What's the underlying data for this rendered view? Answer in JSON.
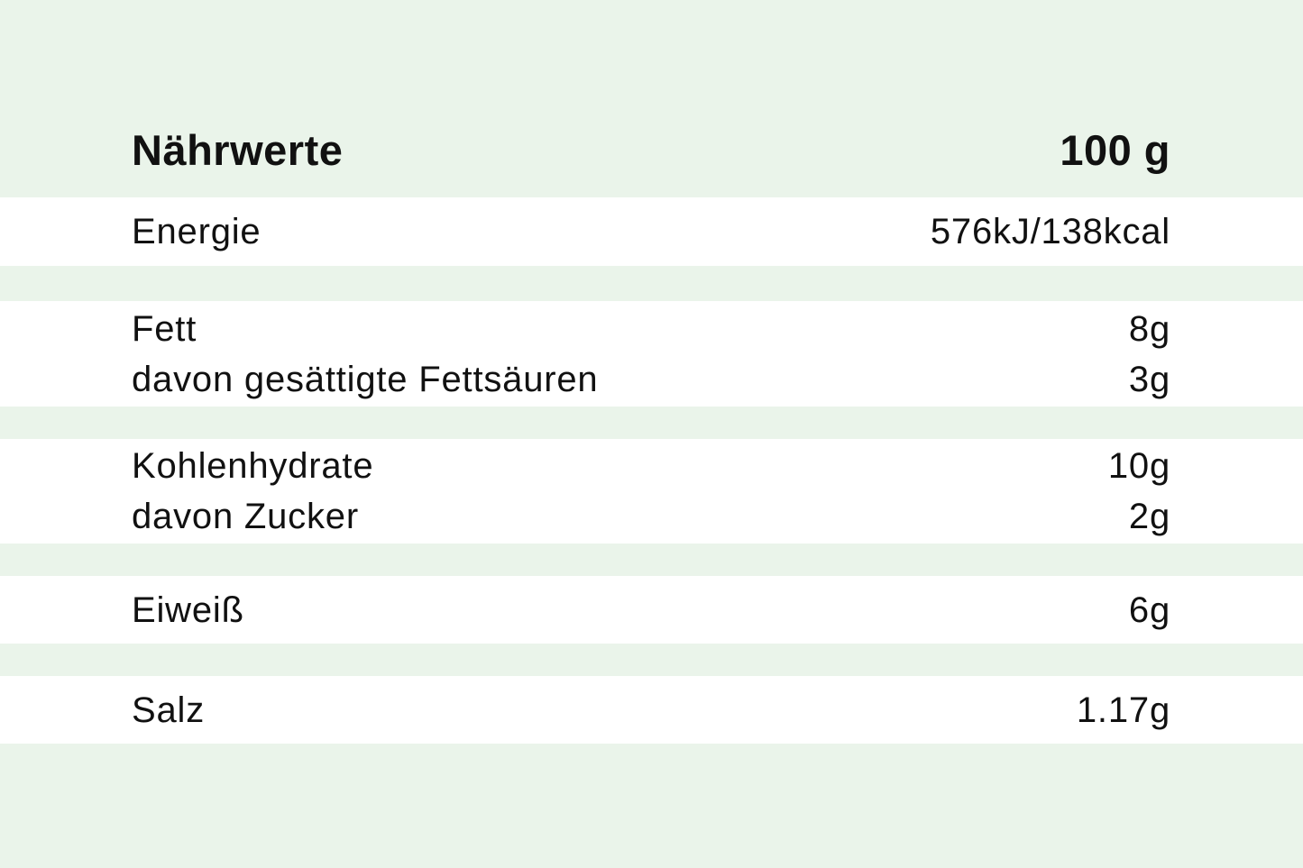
{
  "header": {
    "title": "Nährwerte",
    "per": "100 g"
  },
  "colors": {
    "background": "#eaf4ea",
    "band": "#ffffff",
    "text": "#111111"
  },
  "groups": [
    [
      {
        "label": "Energie",
        "value": "576kJ/138kcal"
      }
    ],
    [
      {
        "label": "Fett",
        "value": "8g"
      },
      {
        "label": "davon gesättigte Fettsäuren",
        "value": "3g"
      }
    ],
    [
      {
        "label": "Kohlenhydrate",
        "value": "10g"
      },
      {
        "label": "davon Zucker",
        "value": "2g"
      }
    ],
    [
      {
        "label": "Eiweiß",
        "value": "6g"
      }
    ],
    [
      {
        "label": "Salz",
        "value": "1.17g"
      }
    ]
  ]
}
